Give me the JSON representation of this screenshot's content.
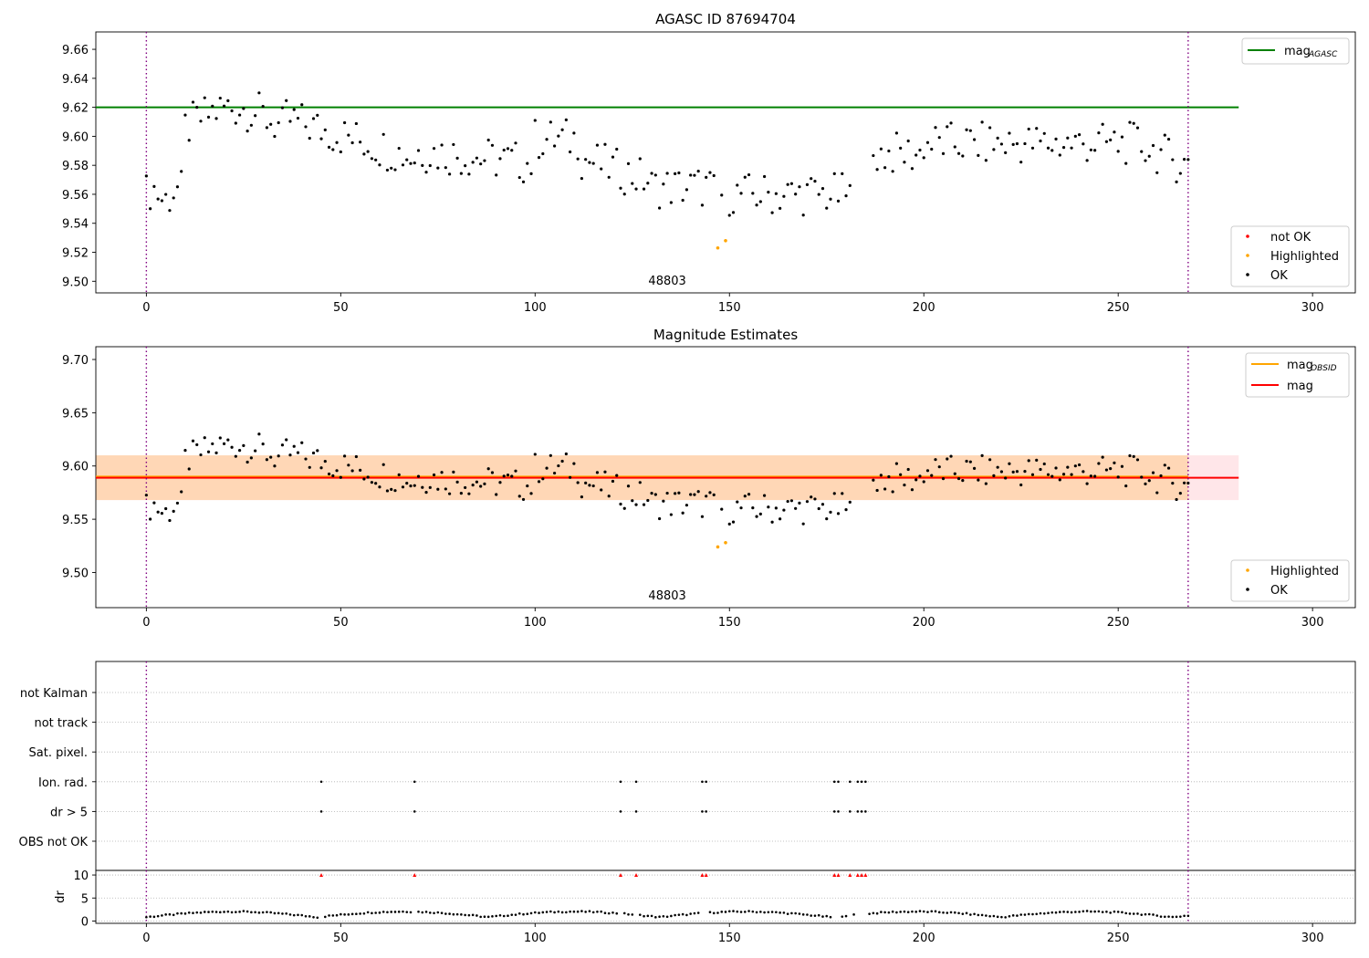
{
  "chart_data": [
    {
      "id": "top",
      "type": "scatter",
      "title": "AGASC ID 87694704",
      "xlim": [
        -13,
        311
      ],
      "ylim": [
        9.492,
        9.672
      ],
      "xticks": [
        "0",
        "50",
        "100",
        "150",
        "200",
        "250",
        "300"
      ],
      "yticks": [
        "9.50",
        "9.52",
        "9.54",
        "9.56",
        "9.58",
        "9.60",
        "9.62",
        "9.64",
        "9.66"
      ],
      "grid": false,
      "obsid_label": "48803",
      "obsid_boundaries": [
        0,
        268
      ],
      "reference_lines": [
        {
          "name": "mag_AGASC",
          "y": 9.62,
          "color": "#008000",
          "x_range": [
            -13,
            281
          ]
        }
      ],
      "legend_upper_right": [
        {
          "label": "mag",
          "subscript": "AGASC",
          "kind": "line",
          "color": "#008000"
        }
      ],
      "legend_lower_right": [
        {
          "label": "not OK",
          "kind": "dot",
          "color": "#ff0000"
        },
        {
          "label": "Highlighted",
          "kind": "dot",
          "color": "#ffa500"
        },
        {
          "label": "OK",
          "kind": "dot",
          "color": "#000000"
        }
      ],
      "series": [
        {
          "name": "Highlighted",
          "color": "#ffa500",
          "x": [
            147,
            149
          ],
          "y": [
            9.523,
            9.528
          ]
        }
      ]
    },
    {
      "id": "middle",
      "type": "scatter",
      "title": "Magnitude Estimates",
      "xlim": [
        -13,
        311
      ],
      "ylim": [
        9.467,
        9.712
      ],
      "xticks": [
        "0",
        "50",
        "100",
        "150",
        "200",
        "250",
        "300"
      ],
      "yticks": [
        "9.50",
        "9.55",
        "9.60",
        "9.65",
        "9.70"
      ],
      "grid": false,
      "obsid_label": "48803",
      "obsid_boundaries": [
        0,
        268
      ],
      "bands": [
        {
          "name": "mag",
          "y": [
            9.568,
            9.61
          ],
          "color": "#ffb6c1",
          "x_range": [
            -13,
            281
          ]
        },
        {
          "name": "mag_OBSID",
          "y": [
            9.568,
            9.61
          ],
          "color": "#ffa500",
          "x_range": [
            -13,
            268
          ]
        }
      ],
      "reference_lines": [
        {
          "name": "mag_OBSID",
          "y": 9.59,
          "color": "#ffa500",
          "x_range": [
            -13,
            268
          ]
        },
        {
          "name": "mag",
          "y": 9.589,
          "color": "#ff0000",
          "x_range": [
            -13,
            281
          ]
        }
      ],
      "legend_upper_right": [
        {
          "label": "mag",
          "subscript": "OBSID",
          "kind": "line",
          "color": "#ffa500"
        },
        {
          "label": "mag",
          "subscript": "",
          "kind": "line",
          "color": "#ff0000"
        }
      ],
      "legend_lower_right": [
        {
          "label": "Highlighted",
          "kind": "dot",
          "color": "#ffa500"
        },
        {
          "label": "OK",
          "kind": "dot",
          "color": "#000000"
        }
      ],
      "series": [
        {
          "name": "Highlighted",
          "color": "#ffa500",
          "x": [
            147,
            149
          ],
          "y": [
            9.524,
            9.528
          ]
        }
      ]
    },
    {
      "id": "flags",
      "type": "scatter",
      "xlim": [
        -13,
        311
      ],
      "categories": [
        "not Kalman",
        "not track",
        "Sat. pixel.",
        "Ion. rad.",
        "dr > 5",
        "OBS not OK"
      ],
      "grid": true,
      "obsid_boundaries": [
        0,
        268
      ],
      "flag_points": [
        {
          "category": "Ion. rad.",
          "x": [
            45,
            69,
            122,
            126,
            143,
            144,
            177,
            178,
            181,
            183,
            184,
            185
          ]
        },
        {
          "category": "dr > 5",
          "x": [
            45,
            69,
            122,
            126,
            143,
            144,
            177,
            178,
            181,
            183,
            184,
            185
          ]
        }
      ]
    },
    {
      "id": "dr",
      "type": "scatter",
      "ylabel": "dr",
      "xlim": [
        -13,
        311
      ],
      "ylim": [
        -0.5,
        11
      ],
      "xticks": [
        "0",
        "50",
        "100",
        "150",
        "200",
        "250",
        "300"
      ],
      "yticks": [
        "0",
        "5",
        "10"
      ],
      "grid": true,
      "obsid_boundaries": [
        0,
        268
      ],
      "overflow_markers": {
        "y": 10,
        "color": "#ff0000",
        "x": [
          45,
          69,
          122,
          126,
          143,
          144,
          177,
          178,
          181,
          183,
          184,
          185
        ]
      }
    }
  ]
}
